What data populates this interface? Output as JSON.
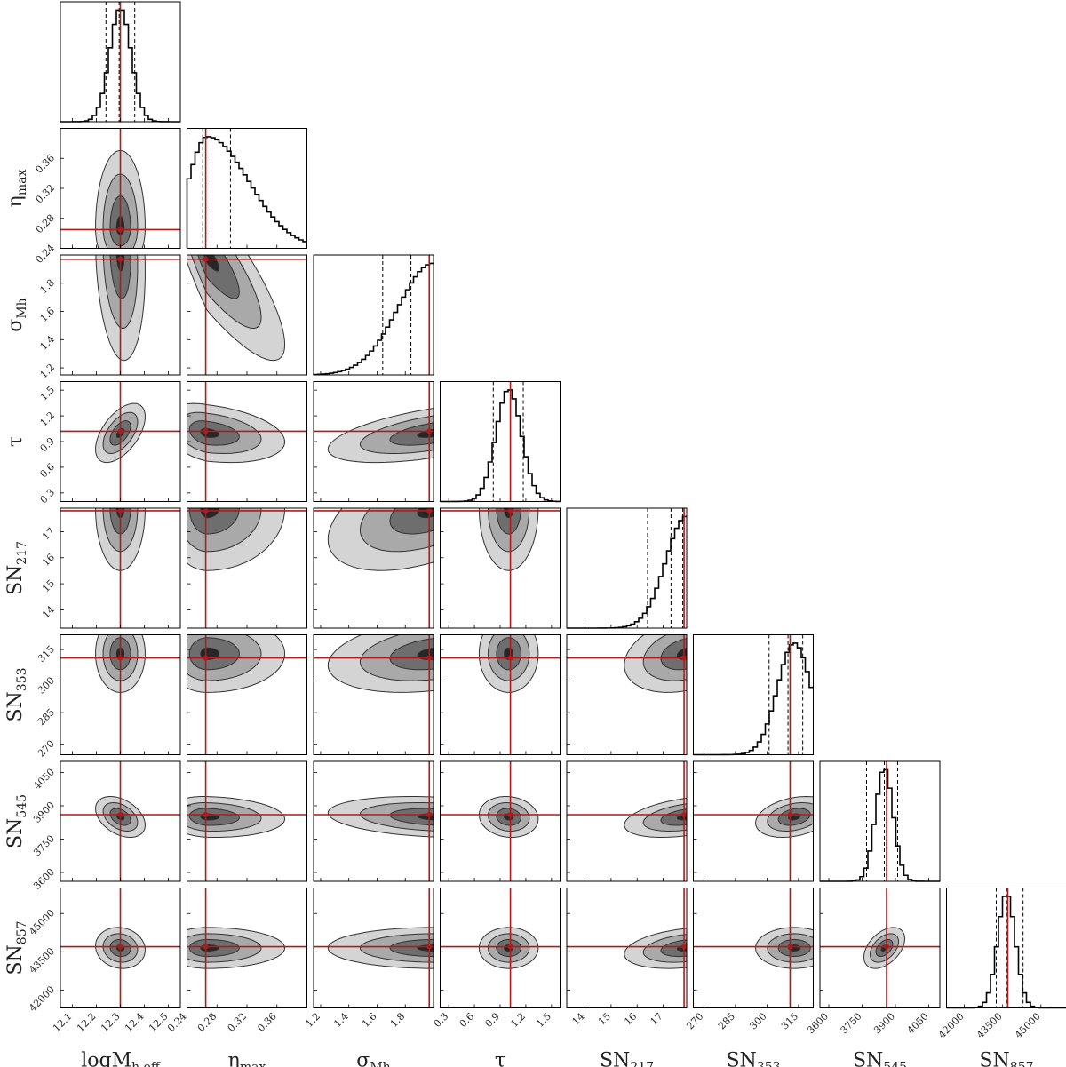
{
  "chart_data": {
    "type": "corner",
    "parameters": [
      {
        "label": "logM",
        "sub": "h,eff",
        "range": [
          12.05,
          12.55
        ],
        "ticks": [
          12.1,
          12.2,
          12.3,
          12.4,
          12.5
        ],
        "truth": 12.3,
        "quantiles": [
          12.24,
          12.295,
          12.36
        ],
        "mean": 12.3,
        "sd": 0.045,
        "skew": 0
      },
      {
        "label": "η",
        "sub": "max",
        "range": [
          0.24,
          0.4
        ],
        "ticks": [
          0.24,
          0.28,
          0.32,
          0.36
        ],
        "truth": 0.265,
        "quantiles": [
          0.261,
          0.272,
          0.298
        ],
        "mean": 0.267,
        "sd": 0.025,
        "skew": 1
      },
      {
        "label": "σ",
        "sub": "Mh",
        "range": [
          1.15,
          2.0
        ],
        "ticks": [
          1.2,
          1.4,
          1.6,
          1.8
        ],
        "truth": 1.97,
        "quantiles": [
          1.64,
          1.84,
          1.97
        ],
        "mean": 2.0,
        "sd": 0.25,
        "skew": -1
      },
      {
        "label": "τ",
        "sub": "",
        "range": [
          0.2,
          1.6
        ],
        "ticks": [
          0.3,
          0.6,
          0.9,
          1.2,
          1.5
        ],
        "truth": 1.02,
        "quantiles": [
          0.82,
          1.02,
          1.17
        ],
        "mean": 1.0,
        "sd": 0.15,
        "skew": 0
      },
      {
        "label": "SN",
        "sub": "217",
        "range": [
          13.3,
          17.9
        ],
        "ticks": [
          14,
          15,
          16,
          17
        ],
        "truth": 17.8,
        "quantiles": [
          16.4,
          17.3,
          17.75
        ],
        "mean": 17.9,
        "sd": 0.8,
        "skew": -1
      },
      {
        "label": "SN",
        "sub": "353",
        "range": [
          265,
          322
        ],
        "ticks": [
          270,
          285,
          300,
          315
        ],
        "truth": 311,
        "quantiles": [
          301,
          310,
          317
        ],
        "mean": 313,
        "sd": 8,
        "skew": 0
      },
      {
        "label": "SN",
        "sub": "545",
        "range": [
          3560,
          4100
        ],
        "ticks": [
          3600,
          3750,
          3900,
          4050
        ],
        "truth": 3860,
        "quantiles": [
          3770,
          3850,
          3910
        ],
        "mean": 3850,
        "sd": 40,
        "skew": 0
      },
      {
        "label": "SN",
        "sub": "857",
        "range": [
          41300,
          46000
        ],
        "ticks": [
          42000,
          43500,
          45000
        ],
        "truth": 43700,
        "quantiles": [
          43250,
          43650,
          44300
        ],
        "mean": 43650,
        "sd": 350,
        "skew": 0
      }
    ],
    "correlations": {
      "1-0": 0.0,
      "2-0": -0.15,
      "2-1": -0.85,
      "3-0": 0.55,
      "3-1": -0.3,
      "3-2": 0.55,
      "4-0": 0.0,
      "4-1": 0.0,
      "4-2": 0.5,
      "4-3": 0.0,
      "5-0": 0.0,
      "5-1": 0.0,
      "5-2": 0.3,
      "5-3": 0.0,
      "5-4": 0.3,
      "6-0": -0.4,
      "6-1": -0.1,
      "6-2": -0.2,
      "6-3": -0.1,
      "6-4": 0.4,
      "6-5": 0.3,
      "7-0": -0.1,
      "7-1": 0.0,
      "7-2": 0.0,
      "7-3": 0.0,
      "7-4": 0.3,
      "7-5": 0.0,
      "7-6": 0.45
    },
    "contour_levels": 3,
    "colors": {
      "truth": "#b11a1a",
      "hist": "#000000",
      "fill_dark": "#262626",
      "fill_mid": "#6e6e6e",
      "fill_light": "#a9a9a9",
      "fill_lightest": "#d4d4d4"
    }
  }
}
